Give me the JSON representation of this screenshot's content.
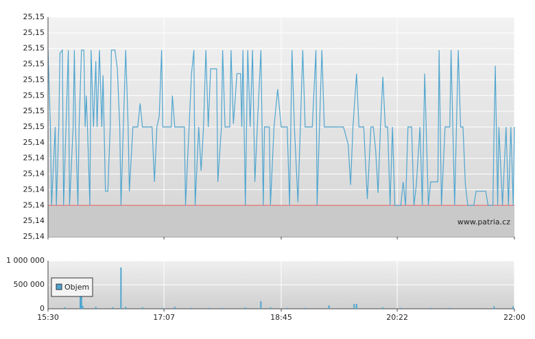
{
  "chart_data": [
    {
      "type": "line",
      "xlim": [
        930,
        1320
      ],
      "xticks": [
        930,
        1027,
        1125,
        1222,
        1320
      ],
      "ylim": [
        25.1385,
        25.1525
      ],
      "yticks": [
        {
          "value": 25.1385,
          "label": "25,14"
        },
        {
          "value": 25.1395,
          "label": "25,14"
        },
        {
          "value": 25.1405,
          "label": "25,14"
        },
        {
          "value": 25.1415,
          "label": "25,14"
        },
        {
          "value": 25.1425,
          "label": "25,14"
        },
        {
          "value": 25.1435,
          "label": "25,14"
        },
        {
          "value": 25.1445,
          "label": "25,14"
        },
        {
          "value": 25.1455,
          "label": "25,15"
        },
        {
          "value": 25.1465,
          "label": "25,15"
        },
        {
          "value": 25.1475,
          "label": "25,15"
        },
        {
          "value": 25.1485,
          "label": "25,15"
        },
        {
          "value": 25.1495,
          "label": "25,15"
        },
        {
          "value": 25.1505,
          "label": "25,15"
        },
        {
          "value": 25.1515,
          "label": "25,15"
        },
        {
          "value": 25.1525,
          "label": "25,15"
        }
      ],
      "grid": true,
      "reference_line": {
        "value": 25.1405,
        "color": "#e87070"
      },
      "watermark": "www.patria.cz",
      "series": [
        {
          "color": "#4ea5cf",
          "x": [
            930,
            932,
            933,
            936,
            937,
            939,
            940,
            942,
            943,
            945,
            947,
            948,
            951,
            952,
            953,
            955,
            956,
            958,
            960,
            961,
            962,
            963,
            965,
            966,
            968,
            970,
            971,
            973,
            975,
            976,
            978,
            980,
            982,
            983,
            986,
            988,
            990,
            991,
            993,
            995,
            997,
            998,
            1001,
            1005,
            1007,
            1009,
            1017,
            1019,
            1021,
            1023,
            1025,
            1026,
            1033,
            1034,
            1036,
            1044,
            1045,
            1048,
            1050,
            1052,
            1053,
            1056,
            1058,
            1060,
            1062,
            1064,
            1066,
            1071,
            1072,
            1075,
            1076,
            1078,
            1082,
            1083,
            1085,
            1088,
            1091,
            1092,
            1093,
            1095,
            1097,
            1099,
            1101,
            1103,
            1105,
            1108,
            1110,
            1111,
            1115,
            1116,
            1119,
            1122,
            1125,
            1130,
            1132,
            1134,
            1136,
            1139,
            1141,
            1143,
            1145,
            1151,
            1154,
            1155,
            1157,
            1159,
            1161,
            1177,
            1181,
            1183,
            1185,
            1188,
            1190,
            1194,
            1197,
            1200,
            1202,
            1204,
            1206,
            1208,
            1210,
            1212,
            1214,
            1216,
            1218,
            1220,
            1225,
            1227,
            1229,
            1231,
            1234,
            1236,
            1238,
            1241,
            1243,
            1245,
            1248,
            1250,
            1256,
            1257,
            1259,
            1262,
            1266,
            1267,
            1270,
            1273,
            1275,
            1277,
            1279,
            1281,
            1286,
            1288,
            1296,
            1298,
            1302,
            1303,
            1304,
            1306,
            1307,
            1310,
            1313,
            1315,
            1317,
            1319,
            1320
          ],
          "values": [
            25.1504,
            25.1455,
            25.1405,
            25.1455,
            25.1405,
            25.1455,
            25.1502,
            25.1504,
            25.1405,
            25.1455,
            25.1504,
            25.1405,
            25.1455,
            25.1504,
            25.1455,
            25.1405,
            25.1455,
            25.1504,
            25.1504,
            25.1455,
            25.1475,
            25.1455,
            25.1405,
            25.1504,
            25.1455,
            25.1497,
            25.1455,
            25.1504,
            25.1455,
            25.1488,
            25.1414,
            25.1414,
            25.1455,
            25.1504,
            25.1504,
            25.1492,
            25.1455,
            25.1405,
            25.1455,
            25.1504,
            25.1455,
            25.1414,
            25.1455,
            25.1455,
            25.147,
            25.1455,
            25.1455,
            25.142,
            25.1455,
            25.1462,
            25.1504,
            25.1455,
            25.1455,
            25.1475,
            25.1455,
            25.1455,
            25.1405,
            25.1455,
            25.1489,
            25.1504,
            25.1405,
            25.1455,
            25.1427,
            25.1455,
            25.1504,
            25.1455,
            25.1492,
            25.1492,
            25.142,
            25.1455,
            25.1504,
            25.1455,
            25.1455,
            25.1504,
            25.1457,
            25.1489,
            25.1489,
            25.1455,
            25.1504,
            25.1405,
            25.1504,
            25.1455,
            25.1504,
            25.142,
            25.1455,
            25.1504,
            25.1405,
            25.1455,
            25.1455,
            25.1405,
            25.1455,
            25.1479,
            25.1455,
            25.1455,
            25.1405,
            25.1504,
            25.1455,
            25.1407,
            25.1455,
            25.1504,
            25.1455,
            25.1455,
            25.1504,
            25.1405,
            25.1455,
            25.1504,
            25.1455,
            25.1455,
            25.1444,
            25.1418,
            25.1455,
            25.1489,
            25.1455,
            25.1455,
            25.1409,
            25.1455,
            25.1455,
            25.144,
            25.1413,
            25.1455,
            25.1487,
            25.1455,
            25.1455,
            25.1405,
            25.1455,
            25.1405,
            25.1405,
            25.142,
            25.1405,
            25.1455,
            25.1455,
            25.1405,
            25.1418,
            25.1455,
            25.1405,
            25.1489,
            25.1405,
            25.142,
            25.142,
            25.1504,
            25.1405,
            25.1455,
            25.1455,
            25.1504,
            25.1405,
            25.1504,
            25.1455,
            25.1455,
            25.1418,
            25.1405,
            25.1405,
            25.1414,
            25.1414,
            25.1405,
            25.1405,
            25.1455,
            25.1494,
            25.1405,
            25.1455,
            25.1405,
            25.1455,
            25.1405,
            25.1455,
            25.1405,
            25.1455
          ]
        }
      ]
    },
    {
      "type": "bar",
      "xlim": [
        930,
        1320
      ],
      "xticks": [
        {
          "value": 930,
          "label": "15:30"
        },
        {
          "value": 1027,
          "label": "17:07"
        },
        {
          "value": 1125,
          "label": "18:45"
        },
        {
          "value": 1222,
          "label": "20:22"
        },
        {
          "value": 1320,
          "label": "22:00"
        }
      ],
      "ylim": [
        0,
        1000000
      ],
      "yticks": [
        0,
        {
          "value": 500000,
          "label": "500 000"
        },
        {
          "value": 1000000,
          "label": "1 000 000"
        }
      ],
      "grid": true,
      "legend": "upper-left",
      "series": [
        {
          "name": "Objem",
          "color": "#4ea5cf",
          "x": [
            944,
            957,
            958,
            959,
            970,
            984,
            991,
            995,
            1009,
            1026,
            1036,
            1050,
            1064,
            1075,
            1095,
            1108,
            1116,
            1130,
            1145,
            1165,
            1186,
            1188,
            1210,
            1225,
            1250,
            1266,
            1303,
            1319
          ],
          "values": [
            30000,
            250000,
            290000,
            60000,
            40000,
            30000,
            860000,
            40000,
            30000,
            20000,
            40000,
            20000,
            20000,
            20000,
            30000,
            160000,
            30000,
            20000,
            20000,
            70000,
            100000,
            100000,
            30000,
            20000,
            20000,
            20000,
            50000,
            50000
          ]
        }
      ]
    }
  ]
}
